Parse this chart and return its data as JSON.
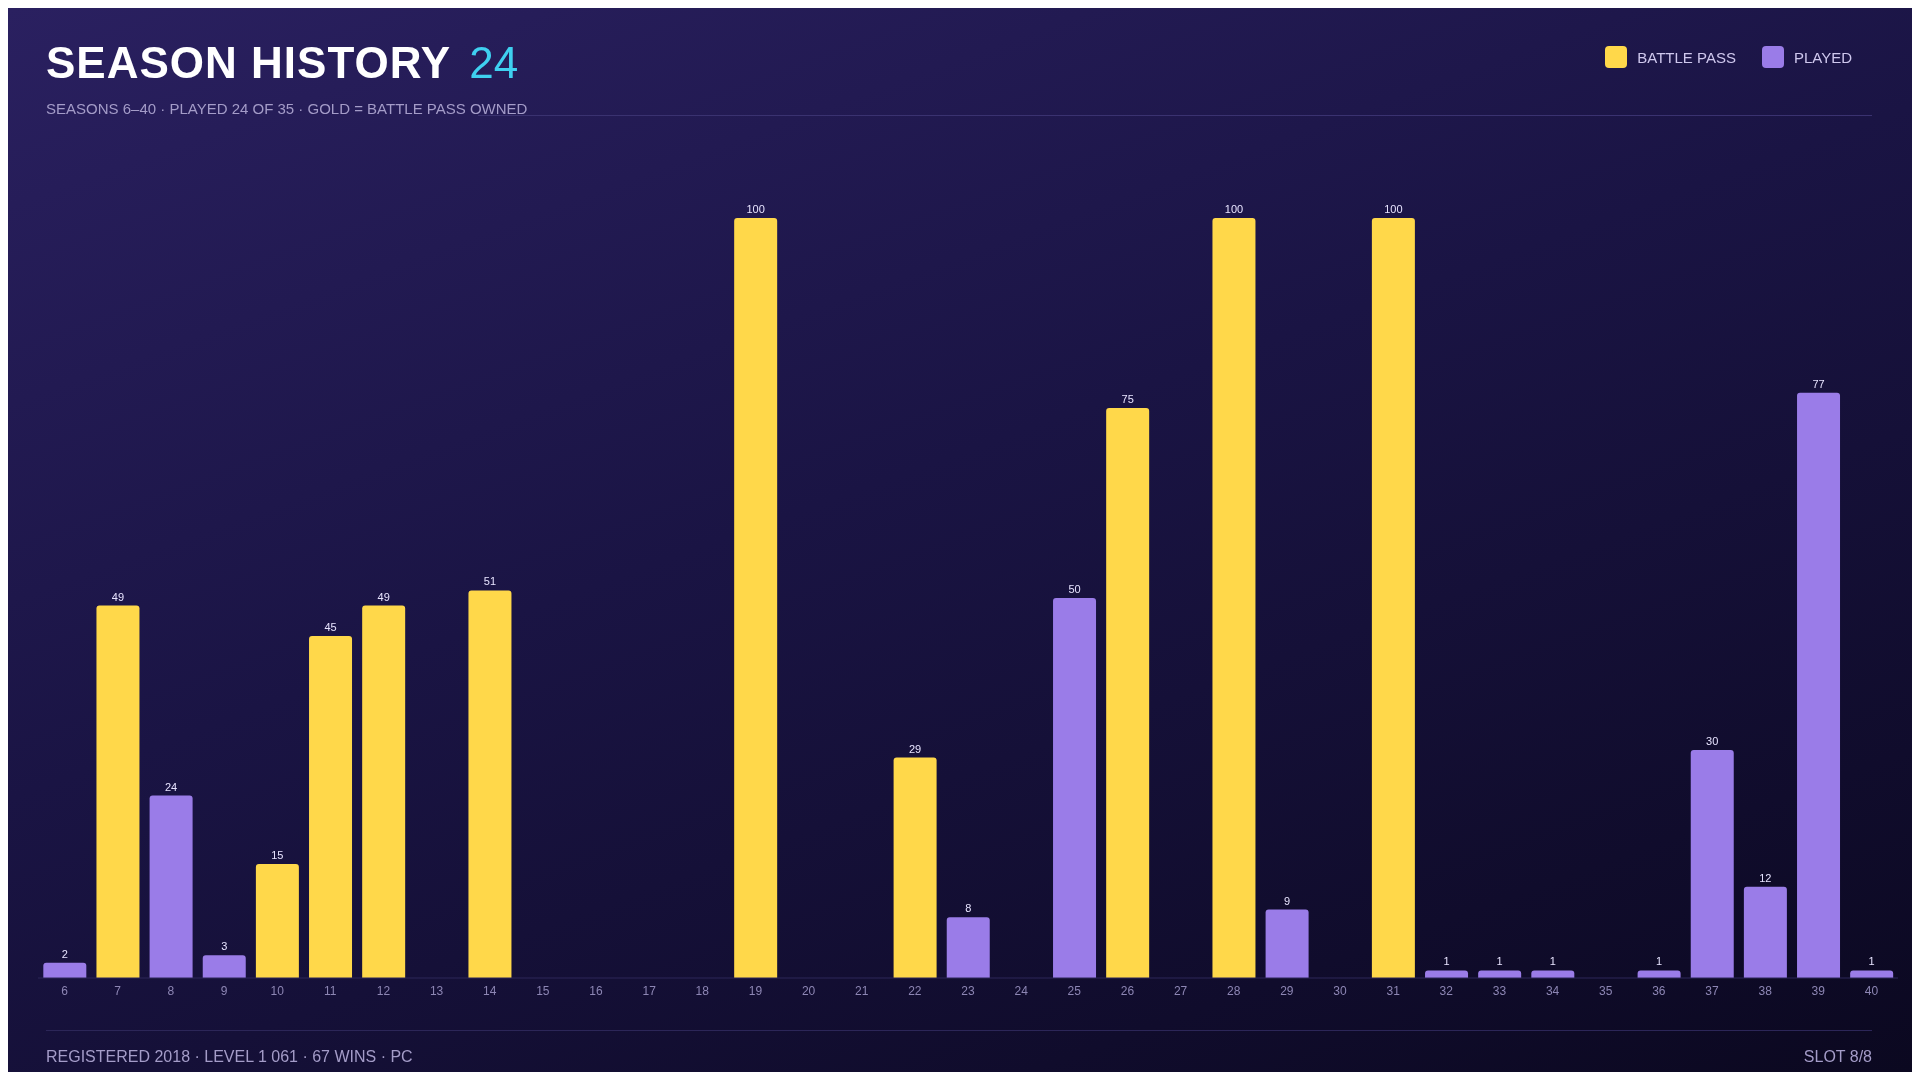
{
  "chart_data": {
    "type": "bar",
    "title": "SEASON HISTORY",
    "subtitle": "SEASONS 6–40 · PLAYED 24 OF 35 · GOLD = BATTLE PASS OWNED",
    "annotations": [
      "24",
      "REGISTERED 2018 · LEVEL 1 061 · 67 WINS · PC",
      "SLOT 8/8"
    ],
    "categories": [
      "6",
      "7",
      "8",
      "9",
      "10",
      "11",
      "12",
      "13",
      "14",
      "15",
      "16",
      "17",
      "18",
      "19",
      "20",
      "21",
      "22",
      "23",
      "24",
      "25",
      "26",
      "27",
      "28",
      "29",
      "30",
      "31",
      "32",
      "33",
      "34",
      "35",
      "36",
      "37",
      "38",
      "39",
      "40"
    ],
    "stacked": true,
    "data_labels": true,
    "legend": "top right",
    "series": [
      {
        "name": "BATTLE PASS",
        "color": "#ffd84a",
        "values": [
          null,
          49,
          null,
          null,
          15,
          45,
          49,
          null,
          51,
          null,
          null,
          null,
          null,
          100,
          null,
          null,
          29,
          null,
          null,
          null,
          75,
          null,
          100,
          null,
          null,
          100,
          null,
          null,
          null,
          null,
          null,
          null,
          null,
          null,
          null
        ]
      },
      {
        "name": "PLAYED",
        "color": "#9a7ce8",
        "values": [
          2,
          null,
          24,
          3,
          null,
          null,
          null,
          null,
          null,
          null,
          null,
          null,
          null,
          null,
          null,
          null,
          null,
          8,
          null,
          50,
          null,
          null,
          null,
          9,
          null,
          null,
          1,
          1,
          1,
          null,
          1,
          30,
          12,
          77,
          1
        ]
      }
    ]
  }
}
